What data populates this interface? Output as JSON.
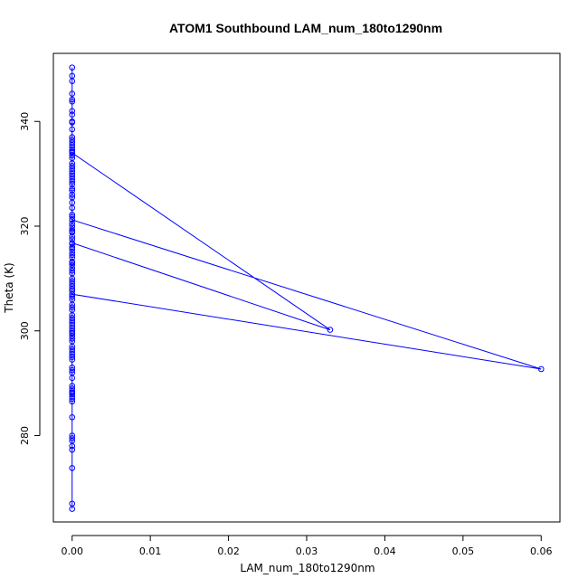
{
  "chart_data": {
    "type": "scatter",
    "title": "ATOM1 Southbound LAM_num_180to1290nm",
    "xlabel": "LAM_num_180to1290nm",
    "ylabel": "Theta (K)",
    "xlim": [
      -0.0024,
      0.0624
    ],
    "ylim": [
      263.5,
      353.0
    ],
    "xticks": [
      0,
      0.01,
      0.02,
      0.03,
      0.04,
      0.05,
      0.06
    ],
    "xtick_labels": [
      "0.00",
      "0.01",
      "0.02",
      "0.03",
      "0.04",
      "0.05",
      "0.06"
    ],
    "yticks": [
      280,
      300,
      320,
      340
    ],
    "ytick_labels": [
      "280",
      "300",
      "320",
      "340"
    ],
    "grid": false,
    "color": "#0000ff",
    "marker": "open-circle",
    "connected_by_line": true,
    "series": [
      {
        "x": [
          0,
          0,
          0,
          0,
          0,
          0,
          0,
          0,
          0,
          0,
          0,
          0,
          0,
          0,
          0,
          0,
          0,
          0,
          0,
          0,
          0,
          0,
          0,
          0,
          0,
          0,
          0,
          0,
          0,
          0,
          0,
          0,
          0,
          0,
          0,
          0,
          0,
          0,
          0,
          0,
          0,
          0,
          0,
          0,
          0,
          0,
          0,
          0,
          0,
          0,
          0,
          0,
          0,
          0,
          0,
          0,
          0,
          0,
          0,
          0,
          0,
          0,
          0,
          0,
          0,
          0,
          0,
          0,
          0,
          0,
          0,
          0,
          0,
          0,
          0,
          0,
          0,
          0,
          0,
          0,
          0,
          0,
          0,
          0,
          0,
          0,
          0,
          0,
          0,
          0,
          0,
          0,
          0,
          0,
          0,
          0,
          0,
          0,
          0,
          0,
          0.033,
          0,
          0,
          0.06,
          0,
          0,
          0,
          0,
          0,
          0,
          0,
          0,
          0,
          0
        ],
        "y": [
          350.3,
          348.7,
          347.7,
          345.3,
          344.2,
          343.8,
          342.0,
          341.3,
          340.0,
          339.8,
          338.5,
          337.0,
          336.0,
          335.5,
          335.0,
          334.5,
          334.2,
          333.0,
          332.0,
          331.0,
          330.5,
          330.0,
          329.0,
          328.0,
          327.2,
          326.8,
          325.5,
          323.5,
          322.2,
          321.2,
          320.5,
          320.0,
          319.4,
          318.0,
          317.5,
          316.6,
          315.6,
          315.0,
          314.5,
          314.0,
          313.2,
          312.0,
          311.5,
          311.0,
          310.0,
          309.0,
          308.5,
          308.0,
          307.6,
          307.0,
          306.5,
          305.0,
          304.0,
          303.0,
          302.0,
          301.5,
          301.0,
          300.5,
          300.0,
          299.6,
          299.0,
          298.0,
          297.0,
          296.5,
          295.0,
          294.5,
          293.0,
          292.5,
          292.0,
          291.0,
          289.0,
          288.5,
          288.0,
          287.5,
          287.0,
          286.5,
          280.0,
          279.5,
          279.0,
          278.0,
          277.3,
          273.8,
          266.0,
          288.2,
          295.5,
          299.5,
          302.5,
          306.0,
          309.5,
          312.6,
          316.0,
          318.8,
          321.8,
          326.0,
          328.5,
          331.5,
          333.5,
          336.5,
          329.5,
          334.0,
          300.2,
          316.8,
          321.2,
          292.7,
          307.0,
          296.0,
          304.5,
          313.0,
          319.0,
          324.5,
          298.5,
          289.5,
          283.5,
          267.0
        ]
      }
    ]
  }
}
